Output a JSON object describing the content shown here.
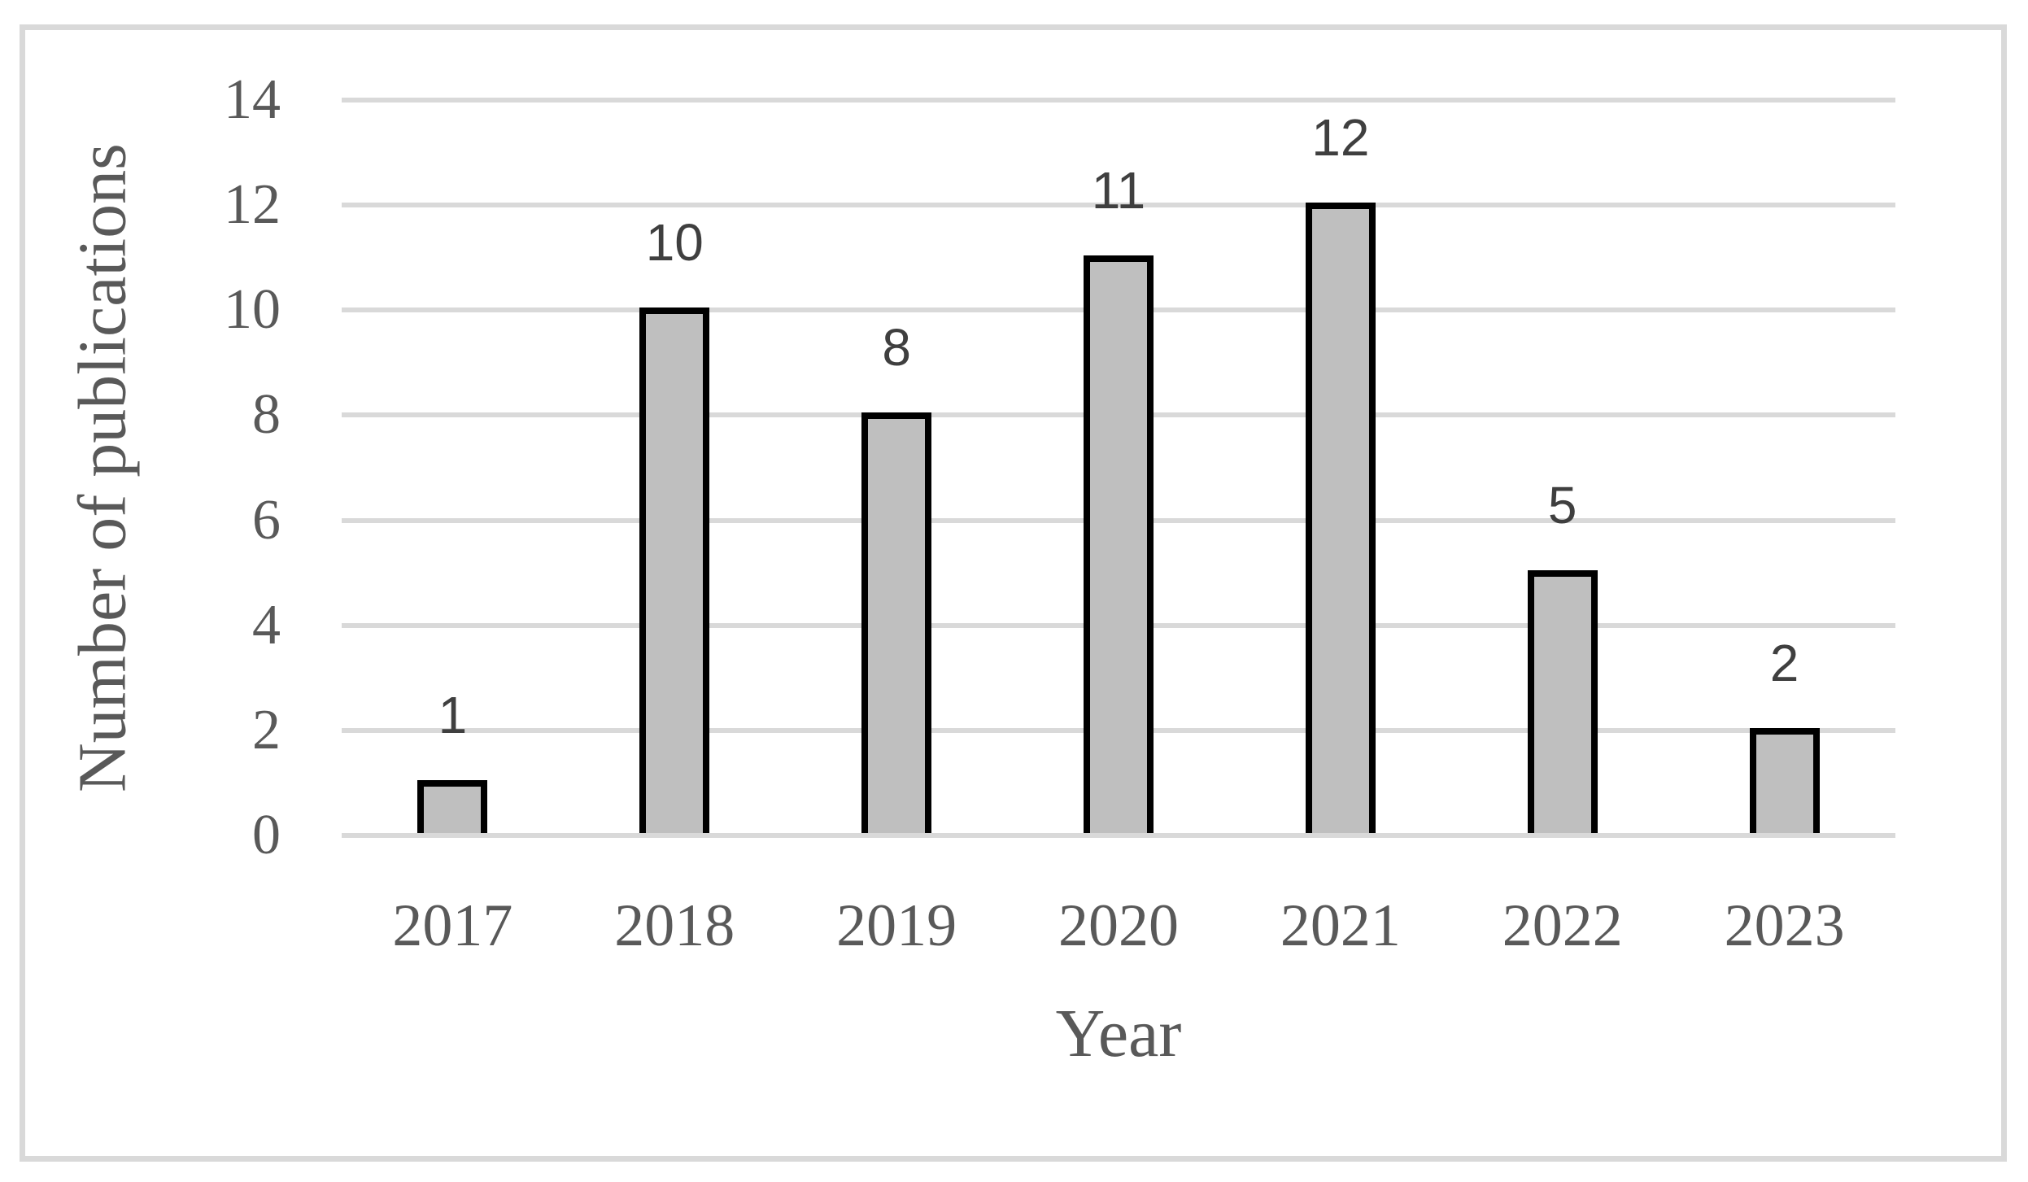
{
  "figure": {
    "border_color": "#D9D9D9",
    "background_color": "#FFFFFF"
  },
  "chart_data": {
    "type": "bar",
    "title": "",
    "xlabel": "Year",
    "ylabel": "Number of publications",
    "categories": [
      "2017",
      "2018",
      "2019",
      "2020",
      "2021",
      "2022",
      "2023"
    ],
    "values": [
      1,
      10,
      8,
      11,
      12,
      5,
      2
    ],
    "data_labels": [
      "1",
      "10",
      "8",
      "11",
      "12",
      "5",
      "2"
    ],
    "ylim": [
      0,
      14
    ],
    "yticks": [
      0,
      2,
      4,
      6,
      8,
      10,
      12,
      14
    ],
    "grid": "horizontal gridlines on, no vertical axis line",
    "legend": "none",
    "colors": {
      "bar_fill": "#BFBFBF",
      "bar_border": "#000000",
      "gridline": "#D9D9D9",
      "axis_text": "#595959",
      "data_label_text": "#3F3F3F"
    }
  }
}
